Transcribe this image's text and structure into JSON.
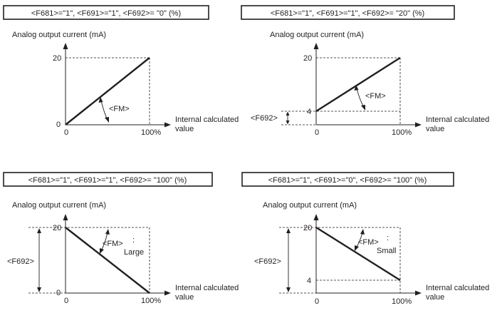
{
  "panels": [
    {
      "title": "<F681>=\"1\", <F691>=\"1\", <F692>= \"0\" (%)",
      "y_axis_label": "Analog output current (mA)",
      "x_axis_label": [
        "Internal calculated",
        "value"
      ],
      "y_top": "20",
      "y_low": "",
      "origin": "0",
      "x_end": "100%",
      "fm_label": "<FM>",
      "fm_note": "",
      "offset_label": "",
      "chart_data": {
        "type": "line",
        "x": [
          0,
          100
        ],
        "y": [
          0,
          20
        ],
        "ylim": [
          0,
          20
        ]
      }
    },
    {
      "title": "<F681>=\"1\", <F691>=\"1\", <F692>= \"20\" (%)",
      "y_axis_label": "Analog output current (mA)",
      "x_axis_label": [
        "Internal calculated",
        "value"
      ],
      "y_top": "20",
      "y_low": "4",
      "origin": "0",
      "x_end": "100%",
      "fm_label": "<FM>",
      "fm_note": "",
      "offset_label": "<F692>",
      "chart_data": {
        "type": "line",
        "x": [
          0,
          100
        ],
        "y": [
          4,
          20
        ],
        "ylim": [
          0,
          20
        ]
      }
    },
    {
      "title": "<F681>=\"1\", <F691>=\"1\", <F692>= \"100\" (%)",
      "y_axis_label": "Analog output current (mA)",
      "x_axis_label": [
        "Internal calculated",
        "value"
      ],
      "y_top": "20",
      "y_low": "",
      "origin": "0",
      "x_end": "100%",
      "fm_label": "<FM>",
      "fm_note": "Large",
      "offset_label": "<F692>",
      "chart_data": {
        "type": "line",
        "x": [
          0,
          100
        ],
        "y": [
          20,
          0
        ],
        "ylim": [
          0,
          20
        ]
      }
    },
    {
      "title": "<F681>=\"1\", <F691>=\"0\", <F692>= \"100\" (%)",
      "y_axis_label": "Analog output current (mA)",
      "x_axis_label": [
        "Internal calculated",
        "value"
      ],
      "y_top": "20",
      "y_low": "4",
      "origin": "0",
      "x_end": "100%",
      "fm_label": "<FM>",
      "fm_note": "Small",
      "offset_label": "<F692>",
      "chart_data": {
        "type": "line",
        "x": [
          0,
          100
        ],
        "y": [
          20,
          4
        ],
        "ylim": [
          0,
          20
        ]
      }
    }
  ],
  "colors": {
    "ink": "#231f20",
    "background": "#ffffff"
  }
}
